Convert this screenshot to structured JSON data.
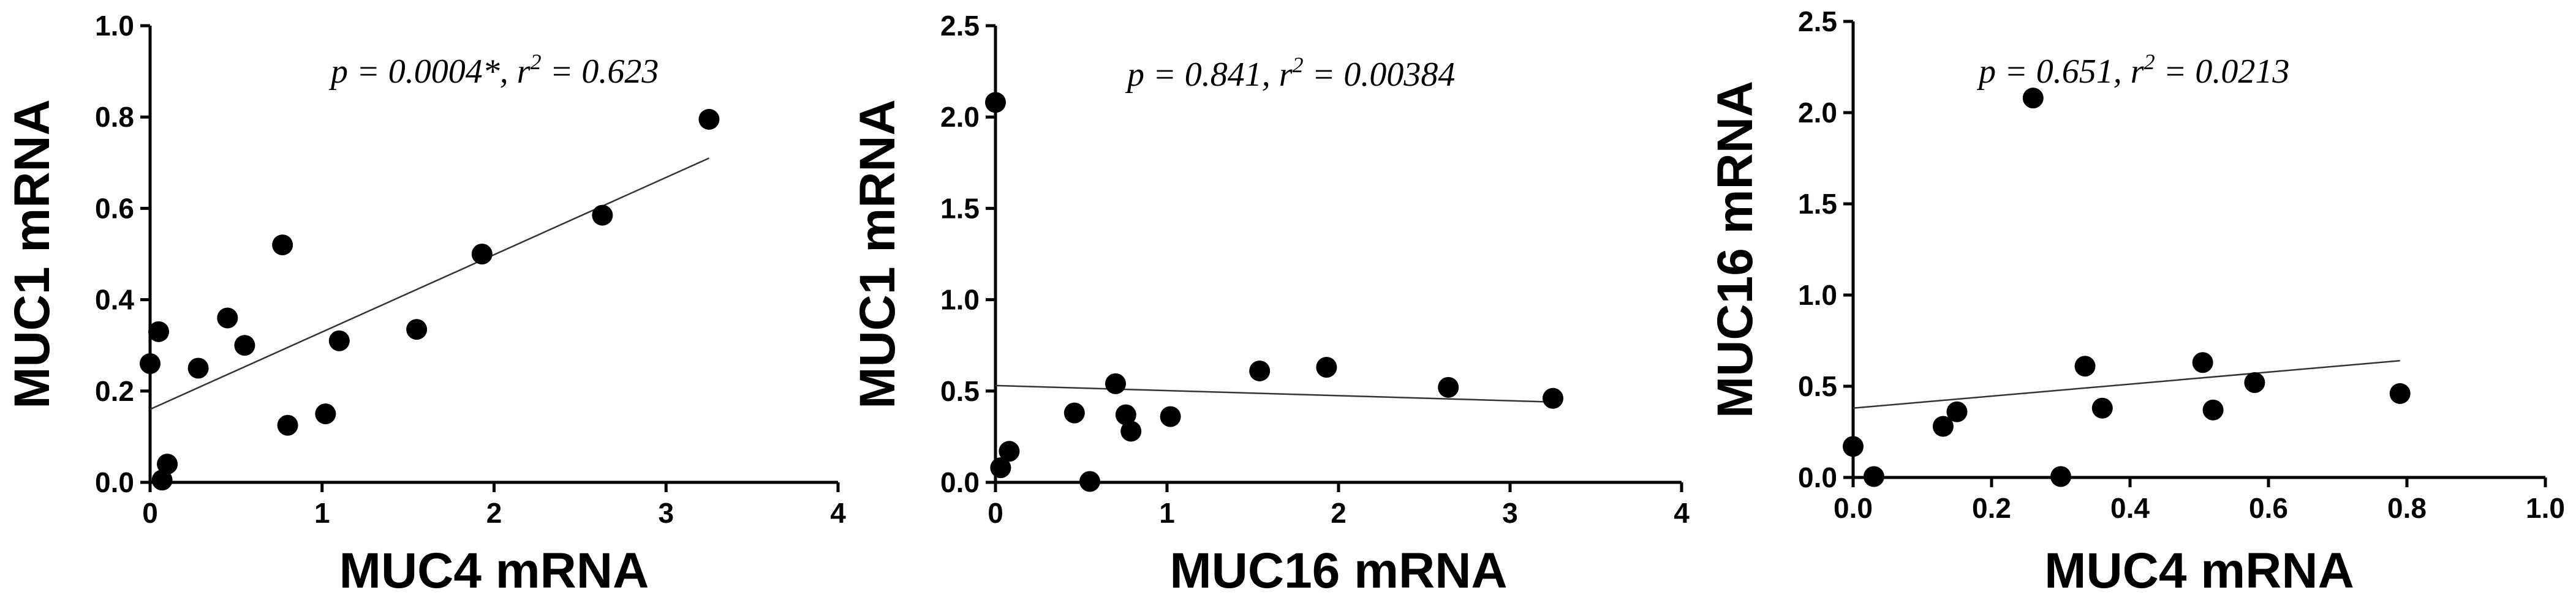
{
  "chart_data": [
    {
      "type": "scatter",
      "xlabel": "MUC4 mRNA",
      "ylabel": "MUC1 mRNA",
      "xlim": [
        0,
        4
      ],
      "ylim": [
        0,
        1.0
      ],
      "xticks": [
        "0",
        "1",
        "2",
        "3",
        "4"
      ],
      "yticks": [
        "0.0",
        "0.2",
        "0.4",
        "0.6",
        "0.8",
        "1.0"
      ],
      "xtick_values": [
        0,
        1,
        2,
        3,
        4
      ],
      "ytick_values": [
        0,
        0.2,
        0.4,
        0.6,
        0.8,
        1.0
      ],
      "annotation": {
        "p_text": "p = 0.0004*, r",
        "sup": "2",
        "r_text": " = 0.623"
      },
      "points": [
        {
          "x": 0.0,
          "y": 0.26
        },
        {
          "x": 0.05,
          "y": 0.33
        },
        {
          "x": 0.07,
          "y": 0.005
        },
        {
          "x": 0.1,
          "y": 0.04
        },
        {
          "x": 0.28,
          "y": 0.25
        },
        {
          "x": 0.45,
          "y": 0.36
        },
        {
          "x": 0.55,
          "y": 0.3
        },
        {
          "x": 0.77,
          "y": 0.52
        },
        {
          "x": 0.8,
          "y": 0.125
        },
        {
          "x": 1.02,
          "y": 0.15
        },
        {
          "x": 1.1,
          "y": 0.31
        },
        {
          "x": 1.55,
          "y": 0.335
        },
        {
          "x": 1.93,
          "y": 0.5
        },
        {
          "x": 2.63,
          "y": 0.585
        },
        {
          "x": 3.25,
          "y": 0.795
        }
      ],
      "regression": {
        "x": [
          0,
          3.25
        ],
        "y": [
          0.16,
          0.71
        ]
      }
    },
    {
      "type": "scatter",
      "xlabel": "MUC16 mRNA",
      "ylabel": "MUC1 mRNA",
      "xlim": [
        0,
        4
      ],
      "ylim": [
        0,
        2.5
      ],
      "xticks": [
        "0",
        "1",
        "2",
        "3",
        "4"
      ],
      "yticks": [
        "0.0",
        "0.5",
        "1.0",
        "1.5",
        "2.0",
        "2.5"
      ],
      "xtick_values": [
        0,
        1,
        2,
        3,
        4
      ],
      "ytick_values": [
        0,
        0.5,
        1.0,
        1.5,
        2.0,
        2.5
      ],
      "annotation": {
        "p_text": "p = 0.841, r",
        "sup": "2",
        "r_text": " = 0.00384"
      },
      "points": [
        {
          "x": 0.0,
          "y": 2.08
        },
        {
          "x": 0.03,
          "y": 0.08
        },
        {
          "x": 0.08,
          "y": 0.17
        },
        {
          "x": 0.46,
          "y": 0.38
        },
        {
          "x": 0.55,
          "y": 0.005
        },
        {
          "x": 0.7,
          "y": 0.54
        },
        {
          "x": 0.76,
          "y": 0.37
        },
        {
          "x": 0.79,
          "y": 0.28
        },
        {
          "x": 1.02,
          "y": 0.36
        },
        {
          "x": 1.54,
          "y": 0.61
        },
        {
          "x": 1.93,
          "y": 0.63
        },
        {
          "x": 2.64,
          "y": 0.52
        },
        {
          "x": 3.25,
          "y": 0.46
        }
      ],
      "regression": {
        "x": [
          0,
          3.25
        ],
        "y": [
          0.53,
          0.44
        ]
      }
    },
    {
      "type": "scatter",
      "xlabel": "MUC4 mRNA",
      "ylabel": "MUC16 mRNA",
      "xlim": [
        0,
        1.0
      ],
      "ylim": [
        0,
        2.5
      ],
      "xticks": [
        "0.0",
        "0.2",
        "0.4",
        "0.6",
        "0.8",
        "1.0"
      ],
      "yticks": [
        "0.0",
        "0.5",
        "1.0",
        "1.5",
        "2.0",
        "2.5"
      ],
      "xtick_values": [
        0,
        0.2,
        0.4,
        0.6,
        0.8,
        1.0
      ],
      "ytick_values": [
        0,
        0.5,
        1.0,
        1.5,
        2.0,
        2.5
      ],
      "annotation": {
        "p_text": "p = 0.651, r",
        "sup": "2",
        "r_text": " = 0.0213"
      },
      "points": [
        {
          "x": 0.0,
          "y": 0.17
        },
        {
          "x": 0.03,
          "y": 0.005
        },
        {
          "x": 0.13,
          "y": 0.28
        },
        {
          "x": 0.15,
          "y": 0.36
        },
        {
          "x": 0.26,
          "y": 2.08
        },
        {
          "x": 0.3,
          "y": 0.005
        },
        {
          "x": 0.335,
          "y": 0.61
        },
        {
          "x": 0.36,
          "y": 0.38
        },
        {
          "x": 0.505,
          "y": 0.63
        },
        {
          "x": 0.52,
          "y": 0.37
        },
        {
          "x": 0.58,
          "y": 0.52
        },
        {
          "x": 0.79,
          "y": 0.46
        }
      ],
      "regression": {
        "x": [
          0,
          0.79
        ],
        "y": [
          0.38,
          0.64
        ]
      }
    }
  ]
}
